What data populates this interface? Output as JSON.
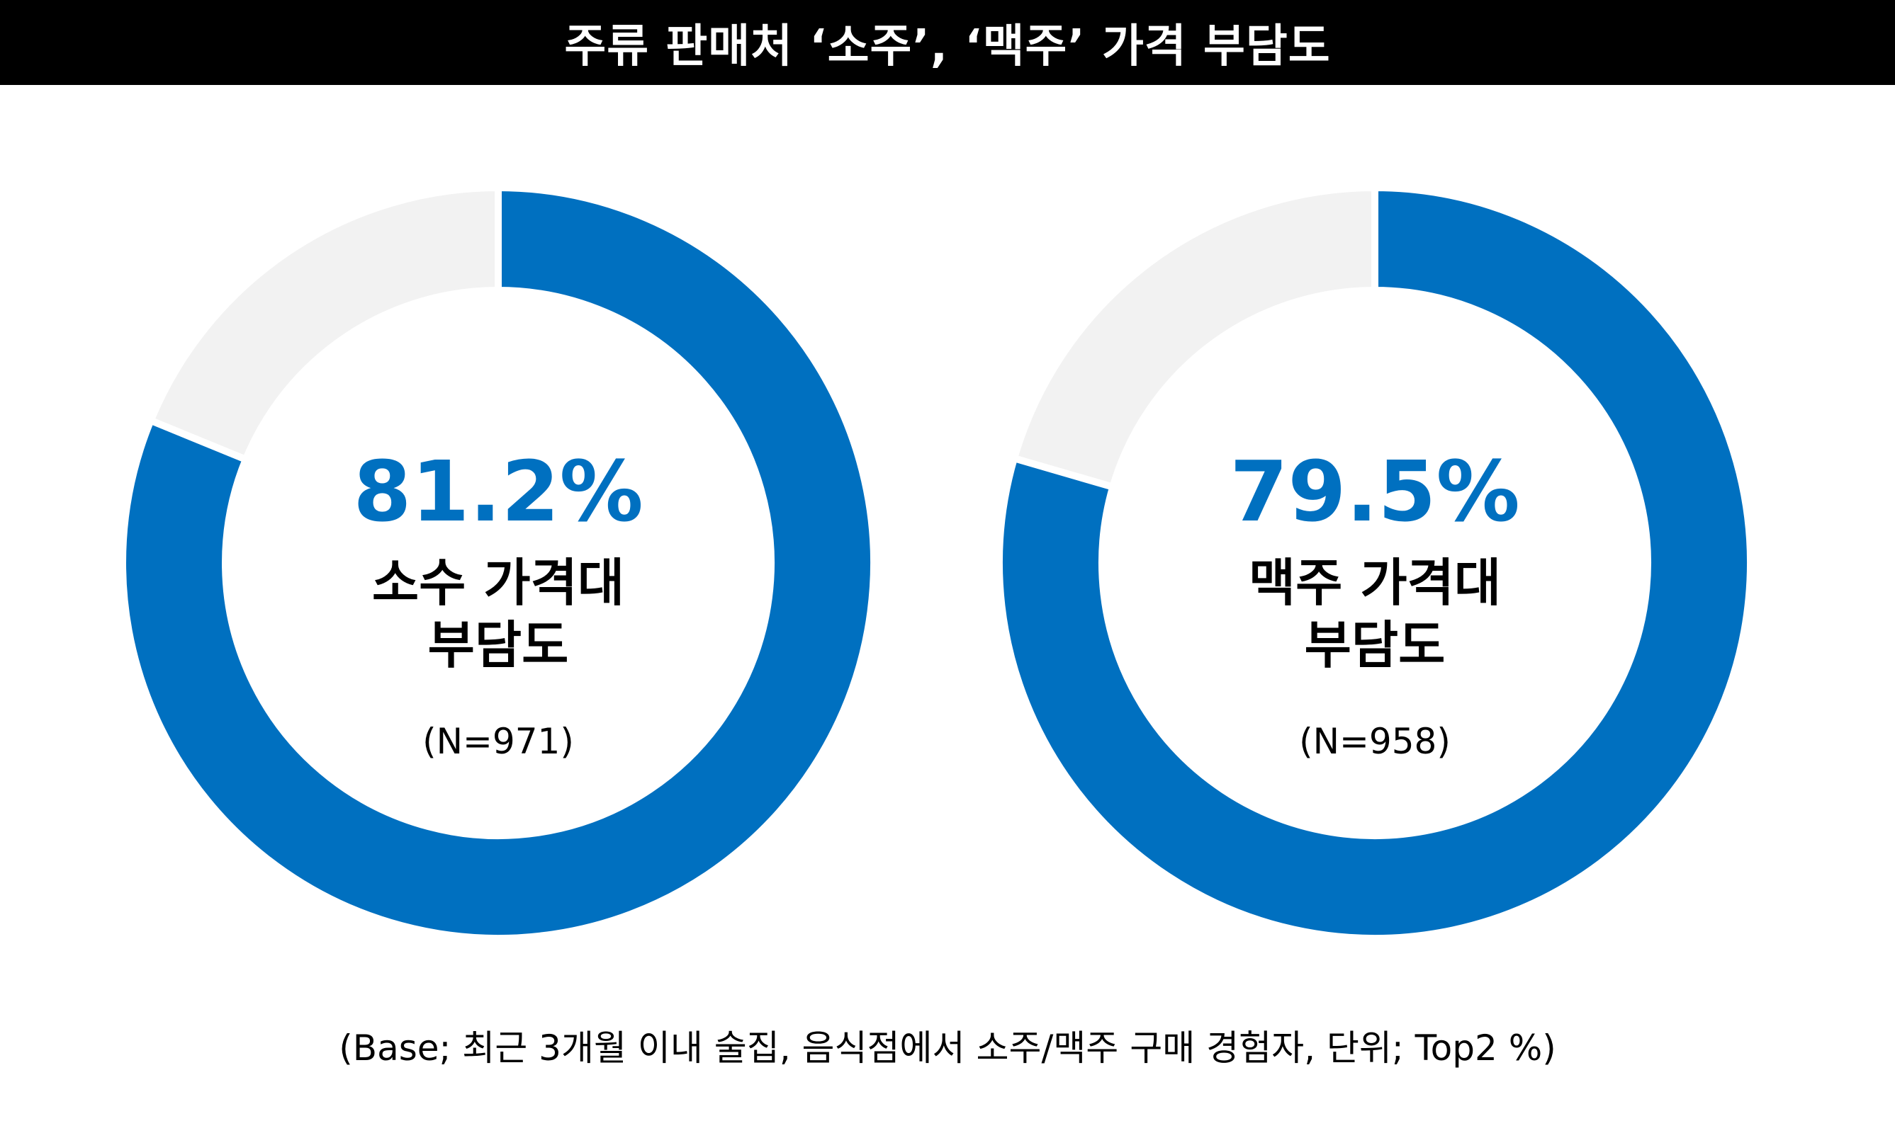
{
  "title": "주류 판매처 ‘소주’, ‘맥주’ 가격 부담도",
  "colors": {
    "accent": "#0070c0",
    "remainder": "#f2f2f2",
    "title_bg": "#000000"
  },
  "chart_data": [
    {
      "type": "pie",
      "variant": "donut",
      "value_label": "81.2%",
      "name": "소수 가격대\n부담도",
      "n_label": "(N=971)",
      "values": [
        81.2,
        18.8
      ]
    },
    {
      "type": "pie",
      "variant": "donut",
      "value_label": "79.5%",
      "name": "맥주 가격대\n부담도",
      "n_label": "(N=958)",
      "values": [
        79.5,
        20.5
      ]
    }
  ],
  "footnote": "(Base; 최근 3개월 이내 술집, 음식점에서 소주/맥주 구매 경험자, 단위; Top2 %)"
}
